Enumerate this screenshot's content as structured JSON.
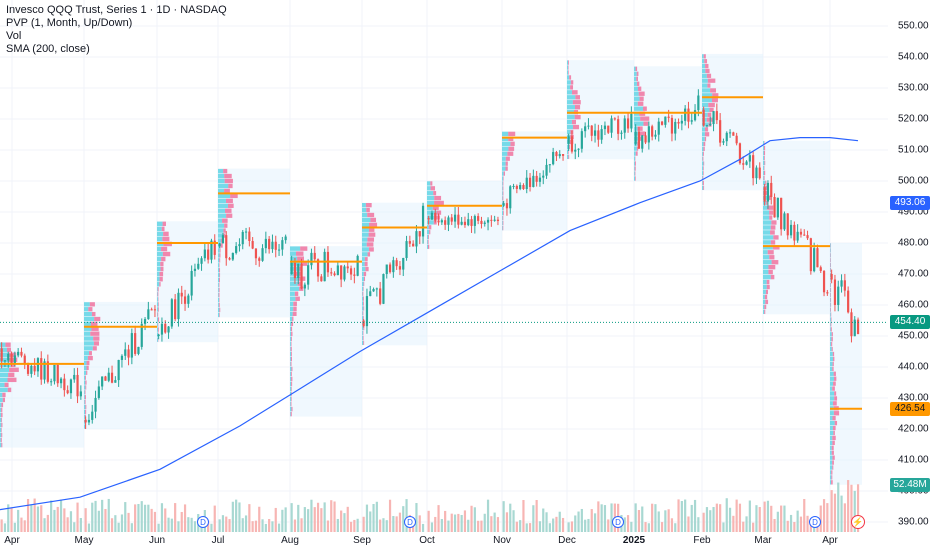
{
  "legend": {
    "title": "Invesco QQQ Trust, Series 1 · 1D · NASDAQ",
    "line2": "PVP (1, Month, Up/Down)",
    "line3": "Vol",
    "line4": "SMA (200, close)"
  },
  "price_axis": {
    "ticks": [
      "550.00",
      "540.00",
      "530.00",
      "520.00",
      "510.00",
      "500.00",
      "490.00",
      "480.00",
      "470.00",
      "460.00",
      "450.00",
      "440.00",
      "430.00",
      "420.00",
      "410.00",
      "400.00",
      "390.00"
    ],
    "last_price_label": "454.40",
    "sma_label": "493.06",
    "poc_label": "426.54",
    "volume_label": "52.48M"
  },
  "time_axis": {
    "labels": [
      "Apr",
      "May",
      "Jun",
      "Jul",
      "Aug",
      "Sep",
      "Oct",
      "Nov",
      "Dec",
      "2025",
      "Feb",
      "Mar",
      "Apr"
    ]
  },
  "markers": {
    "dividend": "D",
    "earnings": "⚡"
  },
  "colors": {
    "up": "#26a69a",
    "down": "#ef5350",
    "sma": "#2962ff",
    "poc": "#ff9800",
    "profile_box": "#e3f2fd",
    "vol_up": "#a8d8d2",
    "vol_down": "#f7b5b3",
    "last_price": "#089981",
    "poc_label_bg": "#ff9800",
    "sma_label_bg": "#2962ff",
    "volume_label_bg": "#26a69a"
  },
  "chart_data": {
    "type": "candlestick",
    "title": "Invesco QQQ Trust, Series 1 · 1D · NASDAQ",
    "ylim": [
      388,
      555
    ],
    "monthly_poc": [
      {
        "month": "Apr",
        "price": 441
      },
      {
        "month": "May",
        "price": 453
      },
      {
        "month": "Jun",
        "price": 480
      },
      {
        "month": "Jul",
        "price": 496
      },
      {
        "month": "Aug",
        "price": 474
      },
      {
        "month": "Sep",
        "price": 485
      },
      {
        "month": "Oct",
        "price": 492
      },
      {
        "month": "Nov",
        "price": 514
      },
      {
        "month": "Dec",
        "price": 522
      },
      {
        "month": "Jan",
        "price": 522
      },
      {
        "month": "Feb",
        "price": 527
      },
      {
        "month": "Mar",
        "price": 479
      },
      {
        "month": "Apr",
        "price": 426.54
      }
    ],
    "sma_200": {
      "start": 394,
      "end": 493.06
    },
    "last_price": 454.4,
    "last_volume": "52.48M"
  }
}
